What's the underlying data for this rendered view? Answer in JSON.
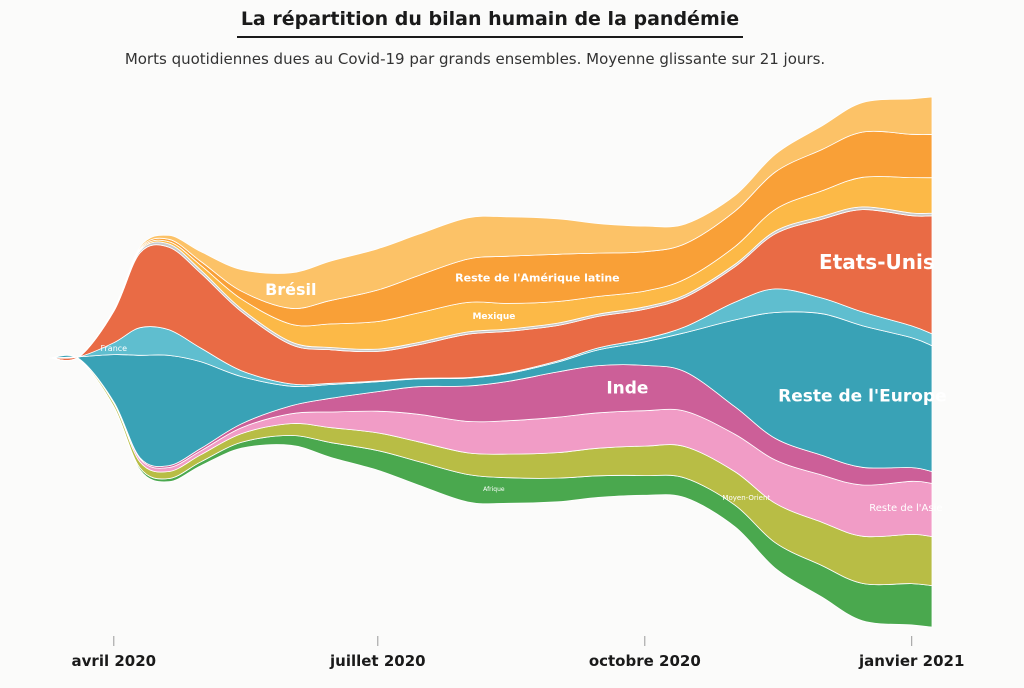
{
  "chart_data": {
    "type": "area",
    "title": "La répartition du bilan humain de la pandémie",
    "subtitle": "Morts quotidiennes dues au Covid-19 par grands ensembles. Moyenne glissante sur 21 jours.",
    "x_axis_labels": [
      "avril 2020",
      "juillet 2020",
      "octobre 2020",
      "janvier 2021"
    ],
    "x": [
      "2020-03-10",
      "2020-03-20",
      "2020-04-01",
      "2020-04-10",
      "2020-04-20",
      "2020-05-01",
      "2020-05-15",
      "2020-06-01",
      "2020-06-15",
      "2020-07-01",
      "2020-07-15",
      "2020-08-01",
      "2020-08-15",
      "2020-09-01",
      "2020-09-15",
      "2020-10-01",
      "2020-10-15",
      "2020-11-01",
      "2020-11-15",
      "2020-12-01",
      "2020-12-15",
      "2021-01-01",
      "2021-01-08"
    ],
    "series": [
      {
        "name": "Afrique",
        "color": "#4aa84e",
        "values": [
          0,
          0,
          20,
          50,
          80,
          100,
          150,
          250,
          380,
          500,
          600,
          700,
          650,
          600,
          550,
          500,
          500,
          550,
          650,
          800,
          950,
          1050,
          1050
        ]
      },
      {
        "name": "Moyen-Orient",
        "color": "#b8bd45",
        "values": [
          0,
          20,
          80,
          150,
          180,
          180,
          220,
          300,
          380,
          450,
          500,
          550,
          600,
          650,
          700,
          750,
          800,
          850,
          1000,
          1100,
          1200,
          1250,
          1250
        ]
      },
      {
        "name": "Reste de l'Asie",
        "color": "#f19cc6",
        "values": [
          0,
          0,
          30,
          80,
          100,
          100,
          150,
          250,
          400,
          550,
          700,
          800,
          850,
          900,
          900,
          900,
          900,
          950,
          1100,
          1200,
          1300,
          1350,
          1350
        ]
      },
      {
        "name": "Inde",
        "color": "#cc5f98",
        "values": [
          0,
          0,
          10,
          30,
          50,
          60,
          100,
          200,
          350,
          500,
          700,
          900,
          1000,
          1150,
          1200,
          1150,
          1000,
          700,
          550,
          500,
          450,
          350,
          300
        ]
      },
      {
        "name": "Reste de l'Europe",
        "color": "#39a2b6",
        "values": [
          0,
          50,
          1200,
          2600,
          2800,
          2200,
          1200,
          500,
          350,
          250,
          200,
          200,
          200,
          250,
          400,
          600,
          1000,
          2200,
          3200,
          3600,
          3600,
          3300,
          3200
        ]
      },
      {
        "name": "France",
        "color": "#5fbecf",
        "values": [
          0,
          0,
          300,
          700,
          650,
          350,
          150,
          60,
          30,
          20,
          15,
          15,
          20,
          30,
          50,
          80,
          150,
          450,
          600,
          400,
          350,
          300,
          300
        ]
      },
      {
        "name": "Etats-Unis",
        "color": "#e96b45",
        "values": [
          0,
          0,
          800,
          1900,
          2100,
          1900,
          1500,
          1000,
          850,
          750,
          850,
          1100,
          1050,
          900,
          800,
          750,
          750,
          900,
          1400,
          2000,
          2600,
          2800,
          3000
        ]
      },
      {
        "name": "Autres",
        "color": "#c9c9c9",
        "values": [
          0,
          0,
          20,
          50,
          80,
          80,
          70,
          70,
          60,
          60,
          60,
          60,
          60,
          60,
          60,
          60,
          60,
          60,
          70,
          70,
          70,
          70,
          70
        ]
      },
      {
        "name": "Mexique",
        "color": "#fcb947",
        "values": [
          0,
          0,
          10,
          30,
          60,
          120,
          250,
          450,
          600,
          700,
          750,
          750,
          650,
          550,
          450,
          400,
          400,
          450,
          550,
          650,
          750,
          900,
          900
        ]
      },
      {
        "name": "Reste de l'Amérique latine",
        "color": "#f9a037",
        "values": [
          0,
          0,
          10,
          30,
          60,
          100,
          200,
          400,
          600,
          800,
          950,
          1100,
          1200,
          1200,
          1100,
          1000,
          900,
          900,
          950,
          1050,
          1150,
          1100,
          1100
        ]
      },
      {
        "name": "Brésil",
        "color": "#fcc267",
        "values": [
          0,
          0,
          10,
          40,
          100,
          250,
          550,
          900,
          1000,
          1050,
          1050,
          1050,
          1000,
          900,
          750,
          650,
          500,
          400,
          450,
          600,
          750,
          900,
          950
        ]
      }
    ],
    "grid": false,
    "legend": "none"
  }
}
